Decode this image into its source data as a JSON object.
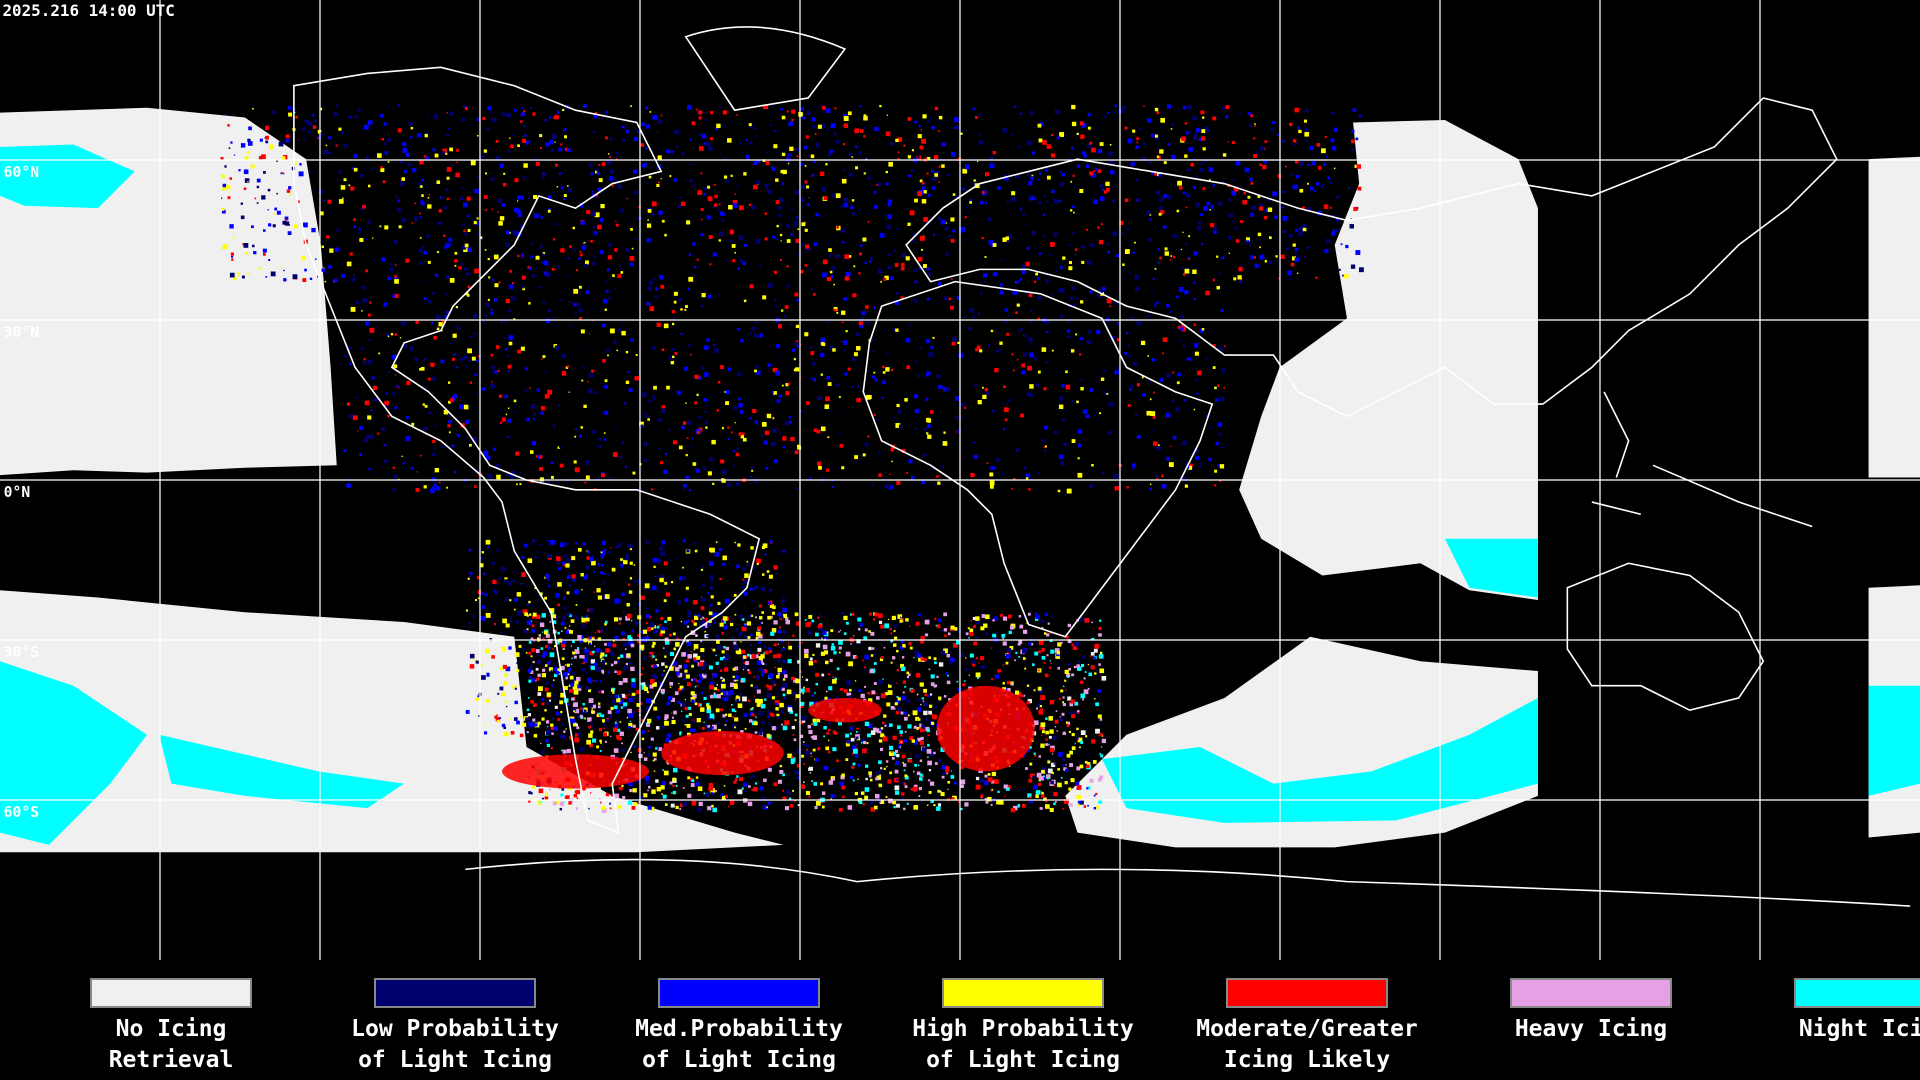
{
  "timestamp": "2025.216 14:00 UTC",
  "latitude_labels": [
    "60°N",
    "30°N",
    "0°N",
    "30°S",
    "60°S"
  ],
  "legend": [
    {
      "color": "#f0f0f0",
      "lines": [
        "No Icing",
        "Retrieval"
      ]
    },
    {
      "color": "#00006e",
      "lines": [
        "Low Probability",
        "of Light Icing"
      ]
    },
    {
      "color": "#0000ff",
      "lines": [
        "Med.Probability",
        "of Light Icing"
      ]
    },
    {
      "color": "#ffff00",
      "lines": [
        "High Probability",
        "of Light Icing"
      ]
    },
    {
      "color": "#ff0000",
      "lines": [
        "Moderate/Greater",
        "Icing Likely"
      ]
    },
    {
      "color": "#e6a0e6",
      "lines": [
        "Heavy Icing",
        ""
      ]
    },
    {
      "color": "#00ffff",
      "lines": [
        "Night Icing",
        ""
      ]
    }
  ]
}
